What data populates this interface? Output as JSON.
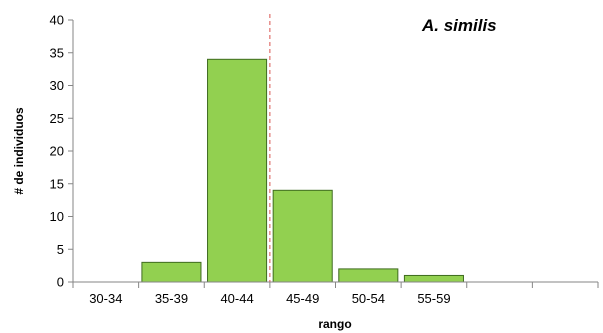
{
  "chart_data": {
    "type": "bar",
    "title": "A. similis",
    "xlabel": "rango",
    "ylabel": "# de individuos",
    "categories": [
      "30-34",
      "35-39",
      "40-44",
      "45-49",
      "50-54",
      "55-59",
      "",
      ""
    ],
    "values": [
      0,
      3,
      34,
      14,
      2,
      1,
      0,
      0
    ],
    "ylim": [
      0,
      40
    ],
    "yticks": [
      "0",
      "5",
      "10",
      "15",
      "20",
      "25",
      "30",
      "35",
      "40"
    ],
    "grid": false,
    "legend": "none",
    "bar_color": "#92d050",
    "bar_edge_color": "#3f6b1f",
    "reference_line": {
      "between_categories": [
        "40-44",
        "45-49"
      ],
      "color": "#d9534f",
      "style": "dashed"
    }
  }
}
